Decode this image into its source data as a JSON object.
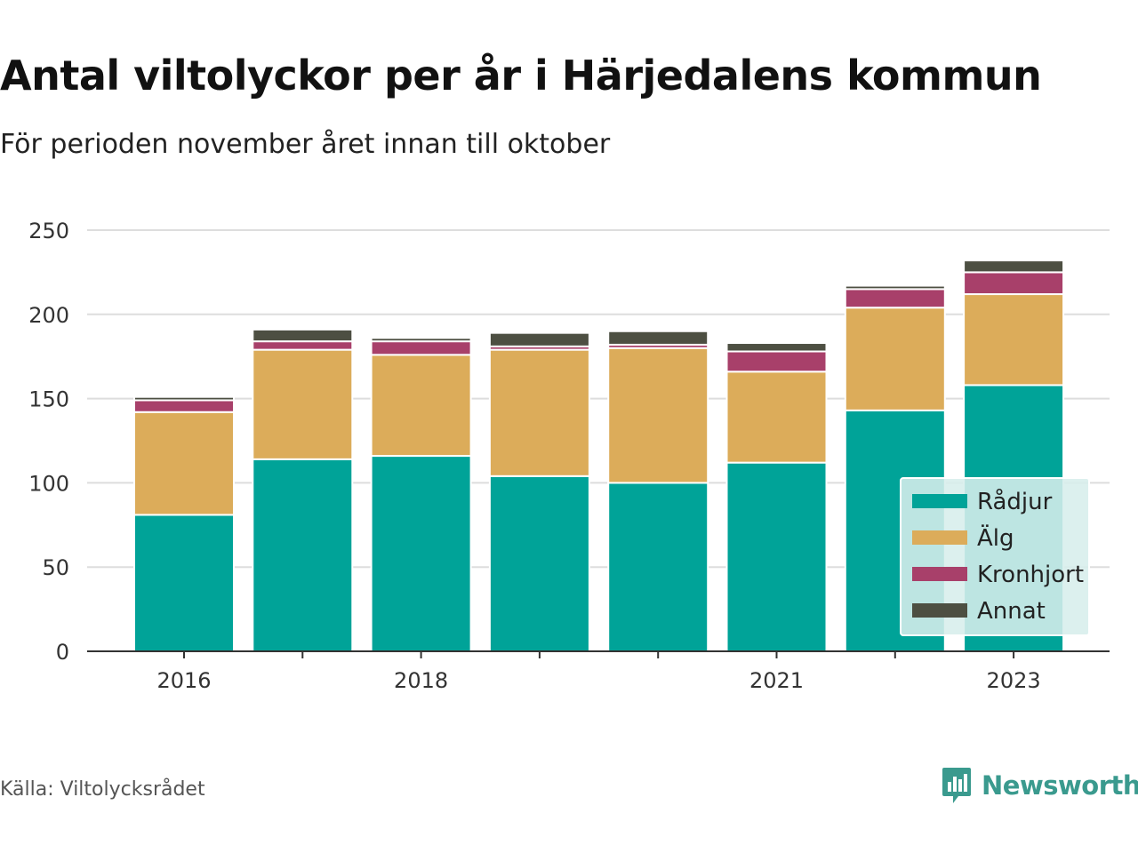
{
  "title": "Antal viltolyckor per år i Härjedalens kommun",
  "subtitle": "För perioden november året innan till oktober",
  "source": "Källa: Viltolycksrådet",
  "brand": {
    "name": "Newsworthy",
    "icon": "bar-chart-badge-icon",
    "color": "#3a9a8e"
  },
  "chart_data": {
    "type": "bar",
    "stacked": true,
    "categories": [
      "2016",
      "2017",
      "2018",
      "2019",
      "2020",
      "2021",
      "2022",
      "2023"
    ],
    "x_tick_labels": [
      "2016",
      "2018",
      "2021",
      "2023"
    ],
    "series": [
      {
        "name": "Rådjur",
        "color": "#00a398",
        "values": [
          81,
          114,
          116,
          104,
          100,
          112,
          143,
          158
        ]
      },
      {
        "name": "Älg",
        "color": "#dcac5a",
        "values": [
          61,
          65,
          60,
          75,
          80,
          54,
          61,
          54
        ]
      },
      {
        "name": "Kronhjort",
        "color": "#a8406a",
        "values": [
          7,
          5,
          8,
          2,
          2,
          12,
          11,
          13
        ]
      },
      {
        "name": "Annat",
        "color": "#4d4f42",
        "values": [
          2,
          7,
          2,
          8,
          8,
          5,
          2,
          7
        ]
      }
    ],
    "ylim": [
      0,
      250
    ],
    "yticks": [
      0,
      50,
      100,
      150,
      200,
      250
    ],
    "grid": true,
    "legend": "bottom-right"
  }
}
